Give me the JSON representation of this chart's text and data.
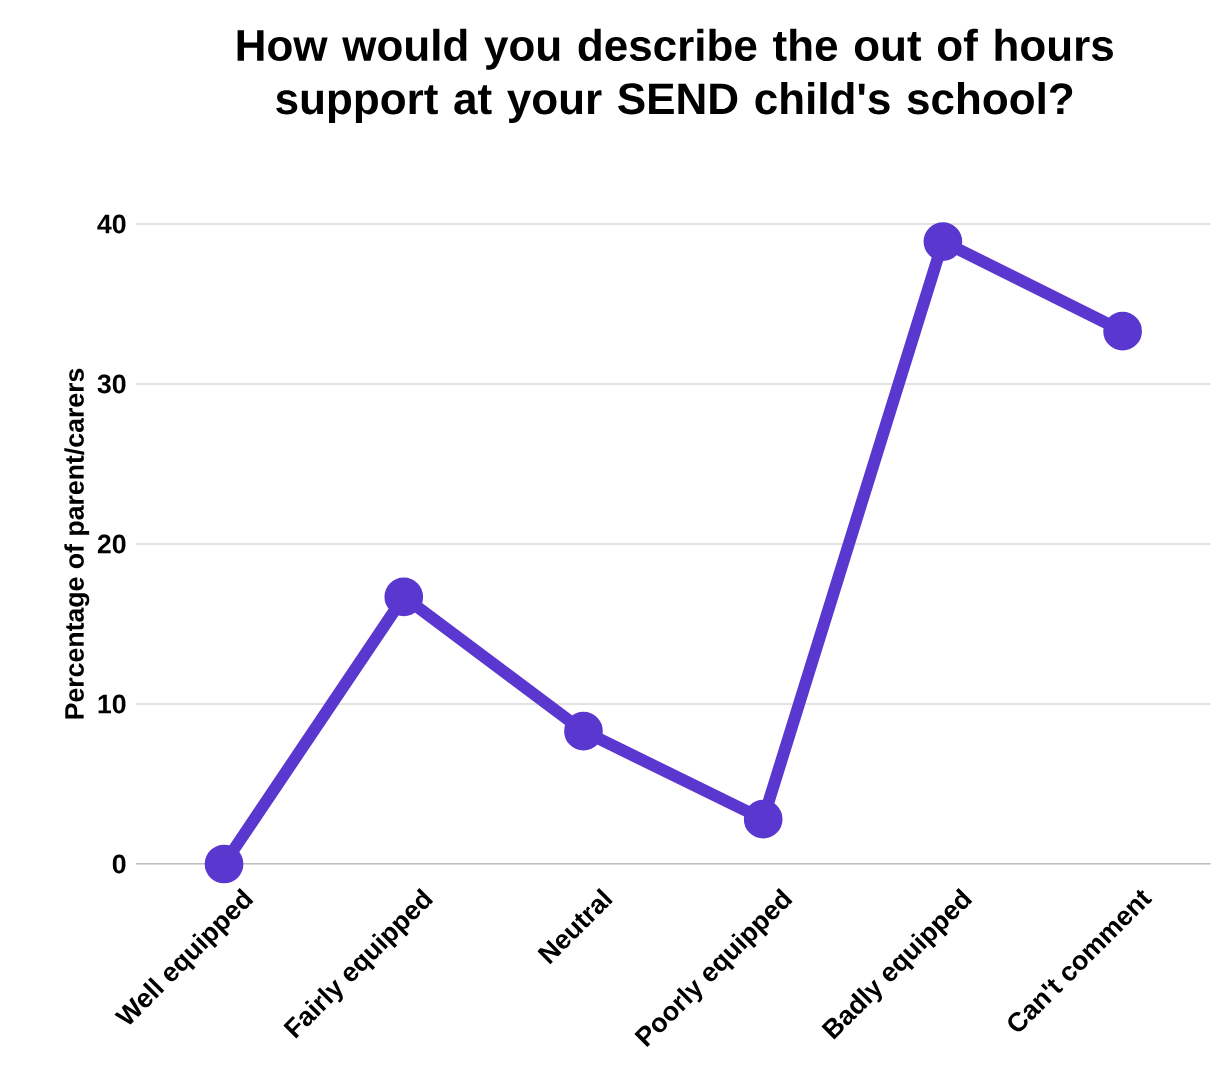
{
  "chart_data": {
    "type": "line",
    "title": "How would you describe the out of hours support at your SEND child's school?",
    "ylabel": "Percentage of parent/carers",
    "categories": [
      "Well equipped",
      "Fairly equipped",
      "Neutral",
      "Poorly equipped",
      "Badly equipped",
      "Can't comment"
    ],
    "series": [
      {
        "color": "#5a38cf",
        "values": [
          0,
          16.7,
          8.3,
          2.8,
          38.9,
          33.3
        ]
      }
    ],
    "ylim": [
      0,
      40
    ],
    "yticks": [
      0,
      10,
      20,
      30,
      40
    ],
    "grid": "y",
    "marker": "circle",
    "line_style": "solid"
  }
}
